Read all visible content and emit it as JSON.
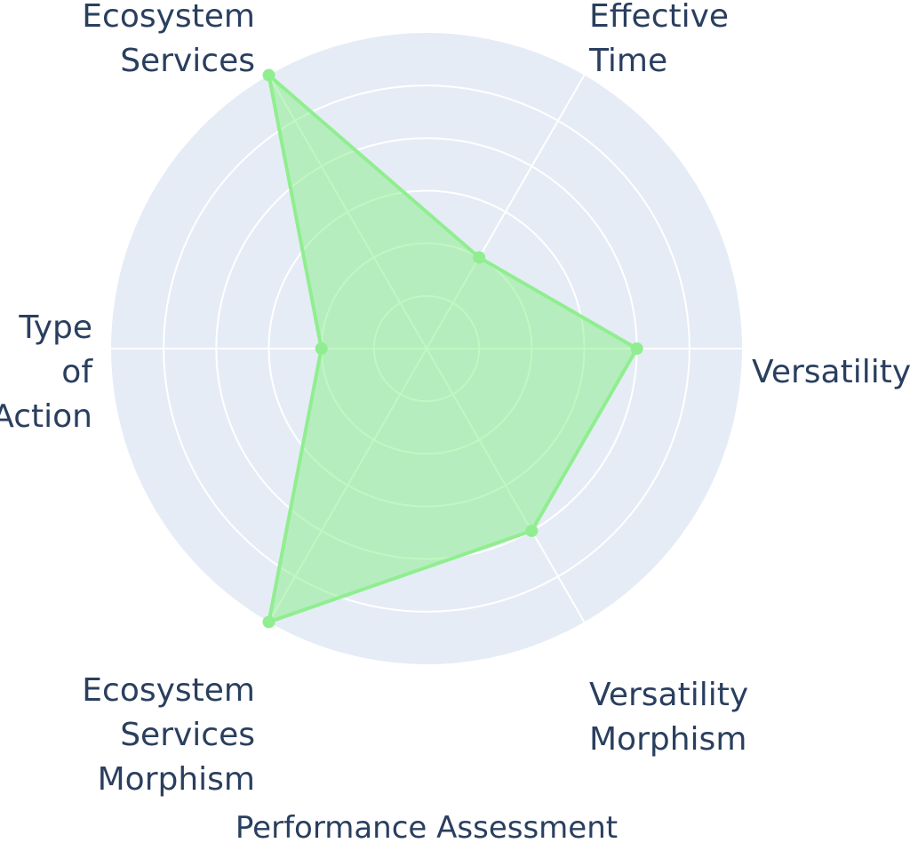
{
  "chart_data": {
    "type": "radar",
    "categories": [
      "Versatility",
      "Effective Time",
      "Ecosystem Services",
      "Type of Action",
      "Ecosystem Services Morphism",
      "Versatility Morphism"
    ],
    "label_lines": [
      [
        "Versatility"
      ],
      [
        "Effective",
        "Time"
      ],
      [
        "Ecosystem",
        "Services"
      ],
      [
        "Type",
        "of",
        "Action"
      ],
      [
        "Ecosystem",
        "Services",
        "Morphism"
      ],
      [
        "Versatility",
        "Morphism"
      ]
    ],
    "series": [
      {
        "values": [
          4,
          2,
          6,
          2,
          6,
          4
        ]
      }
    ],
    "rlim": [
      0,
      6
    ],
    "rticks": [
      1,
      2,
      3,
      4,
      5,
      6
    ],
    "grid": true,
    "legend": "none",
    "caption": "Performance Assessment"
  },
  "colors": {
    "polar_bg": "#e5ecf6",
    "grid": "#ffffff",
    "series_line": "#90ee90",
    "series_fill": "#90ee90",
    "text": "#2a3f5f"
  }
}
